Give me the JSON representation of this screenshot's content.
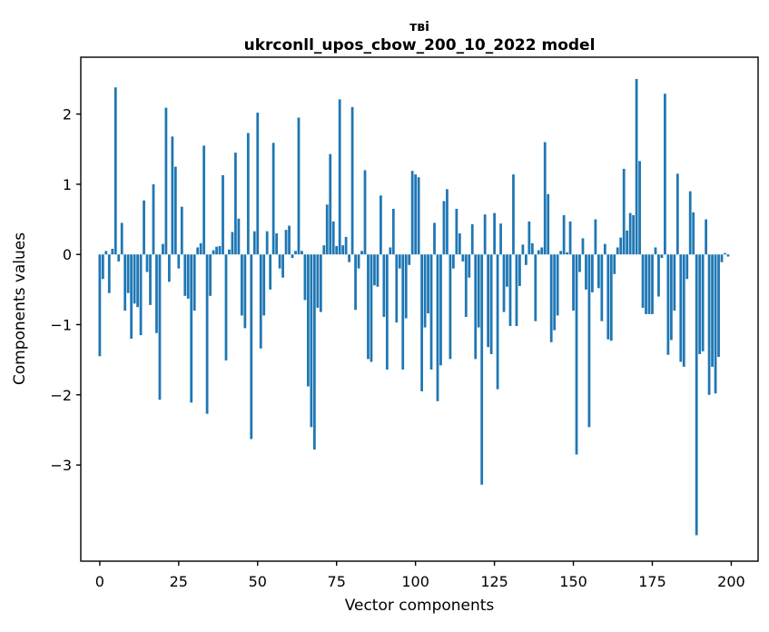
{
  "chart_data": {
    "type": "bar",
    "title_line1": "тві",
    "title_line2": "ukrconll_upos_cbow_200_10_2022 model",
    "xlabel": "Vector components",
    "ylabel": "Components values",
    "x_ticks": [
      0,
      25,
      50,
      75,
      100,
      125,
      150,
      175,
      200
    ],
    "y_ticks": [
      2,
      1,
      0,
      -1,
      -2,
      -3
    ],
    "xlim": [
      -6,
      208.5
    ],
    "ylim": [
      -4.37,
      2.81
    ],
    "grid": false,
    "legend": "none",
    "bar_color": "#1f77b4",
    "axis_color": "#000000",
    "n_components": 200,
    "values": [
      -1.45,
      -0.35,
      0.05,
      -0.55,
      0.08,
      2.38,
      -0.1,
      0.45,
      -0.8,
      -0.55,
      -1.2,
      -0.7,
      -0.75,
      -1.15,
      0.77,
      -0.25,
      -0.72,
      1.0,
      -1.12,
      -2.07,
      0.15,
      2.09,
      -0.39,
      1.68,
      1.25,
      -0.2,
      0.68,
      -0.59,
      -0.63,
      -2.11,
      -0.8,
      0.1,
      0.16,
      1.55,
      -2.27,
      -0.59,
      0.06,
      0.11,
      0.12,
      1.13,
      -1.51,
      0.07,
      0.32,
      1.45,
      0.51,
      -0.87,
      -1.05,
      1.73,
      -2.63,
      0.33,
      2.02,
      -1.34,
      -0.87,
      0.33,
      -0.5,
      1.59,
      0.3,
      -0.2,
      -0.33,
      0.35,
      0.41,
      -0.05,
      0.05,
      1.95,
      0.05,
      -0.65,
      -1.88,
      -2.46,
      -2.78,
      -0.76,
      -0.82,
      0.13,
      0.71,
      1.43,
      0.47,
      0.12,
      2.21,
      0.13,
      0.25,
      -0.11,
      2.1,
      -0.79,
      -0.2,
      0.05,
      1.2,
      -1.49,
      -1.53,
      -0.44,
      -0.46,
      0.84,
      -0.89,
      -1.64,
      0.1,
      0.65,
      -0.97,
      -0.2,
      -1.64,
      -0.91,
      -0.15,
      1.19,
      1.14,
      1.1,
      -1.95,
      -1.04,
      -0.84,
      -1.64,
      0.45,
      -2.09,
      -1.58,
      0.76,
      0.93,
      -1.49,
      -0.2,
      0.65,
      0.3,
      -0.1,
      -0.89,
      -0.33,
      0.43,
      -1.49,
      -1.04,
      -3.28,
      0.57,
      -1.32,
      -1.42,
      0.59,
      -1.92,
      0.44,
      -0.82,
      -0.46,
      -1.02,
      1.14,
      -1.02,
      -0.45,
      0.14,
      -0.15,
      0.47,
      0.16,
      -0.95,
      0.06,
      0.1,
      1.6,
      0.86,
      -1.25,
      -1.08,
      -0.87,
      0.05,
      0.56,
      0.03,
      0.47,
      -0.8,
      -2.85,
      -0.25,
      0.23,
      -0.5,
      -2.46,
      -0.54,
      0.5,
      -0.48,
      -0.95,
      0.15,
      -1.21,
      -1.23,
      -0.28,
      0.1,
      0.24,
      1.22,
      0.34,
      0.59,
      0.56,
      2.5,
      1.33,
      -0.76,
      -0.85,
      -0.85,
      -0.85,
      0.1,
      -0.6,
      -0.05,
      2.29,
      -1.43,
      -1.22,
      -0.8,
      1.15,
      -1.53,
      -1.6,
      -0.35,
      0.9,
      0.6,
      -4.0,
      -1.42,
      -1.38,
      0.5,
      -2.0,
      -1.6,
      -1.98,
      -1.46,
      -0.11,
      0.02,
      -0.03
    ]
  }
}
